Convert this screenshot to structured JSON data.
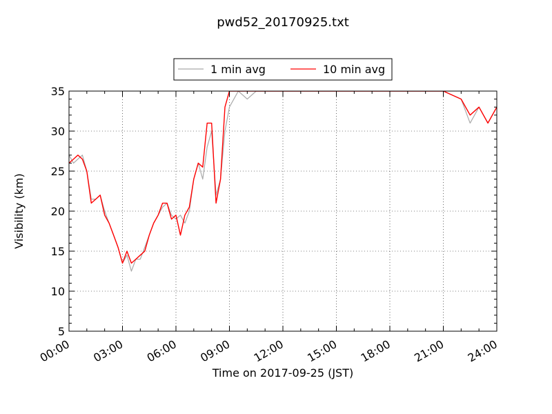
{
  "chart_data": {
    "type": "line",
    "title": "pwd52_20170925.txt",
    "xlabel": "Time on 2017-09-25 (JST)",
    "ylabel": "Visibility (km)",
    "xlim": [
      "00:00",
      "24:00"
    ],
    "ylim": [
      5,
      35
    ],
    "x_tick_labels": [
      "00:00",
      "03:00",
      "06:00",
      "09:00",
      "12:00",
      "15:00",
      "18:00",
      "21:00",
      "24:00"
    ],
    "y_tick_labels": [
      "5",
      "10",
      "15",
      "20",
      "25",
      "30",
      "35"
    ],
    "y_tick_values": [
      5,
      10,
      15,
      20,
      25,
      30,
      35
    ],
    "grid": true,
    "legend_position": "top-center",
    "x": [
      "00:00",
      "00:15",
      "00:30",
      "00:45",
      "01:00",
      "01:15",
      "01:30",
      "01:45",
      "02:00",
      "02:15",
      "02:30",
      "02:45",
      "03:00",
      "03:15",
      "03:30",
      "03:45",
      "04:00",
      "04:15",
      "04:30",
      "04:45",
      "05:00",
      "05:15",
      "05:30",
      "05:45",
      "06:00",
      "06:15",
      "06:30",
      "06:45",
      "07:00",
      "07:15",
      "07:30",
      "07:45",
      "08:00",
      "08:15",
      "08:30",
      "08:45",
      "09:00",
      "09:30",
      "10:00",
      "10:30",
      "11:00",
      "12:00",
      "13:00",
      "14:00",
      "15:00",
      "16:00",
      "17:00",
      "18:00",
      "19:00",
      "20:00",
      "21:00",
      "22:00",
      "22:30",
      "23:00",
      "23:30",
      "24:00"
    ],
    "series": [
      {
        "name": "1 min avg",
        "color": "#a9a9a9",
        "values": [
          27,
          26,
          26.5,
          27,
          25,
          21.5,
          21.5,
          22,
          20,
          18.5,
          17,
          15.5,
          13.5,
          14.5,
          12.5,
          14,
          14,
          15.5,
          17,
          18.5,
          19.5,
          20.5,
          21,
          19.5,
          19,
          19.5,
          18.5,
          20,
          24,
          26,
          24,
          28,
          30,
          22,
          24,
          30,
          33,
          35,
          34,
          35,
          35,
          35,
          35,
          35,
          35,
          35,
          35,
          35,
          35,
          35,
          35,
          34,
          31,
          33,
          31,
          33
        ]
      },
      {
        "name": "10 min avg",
        "color": "#ff0000",
        "values": [
          26,
          26.5,
          27,
          26.5,
          25,
          21,
          21.5,
          22,
          19.5,
          18.5,
          17,
          15.5,
          13.5,
          15,
          13.5,
          14,
          14.5,
          15,
          17,
          18.5,
          19.5,
          21,
          21,
          19,
          19.5,
          17,
          19.5,
          20.5,
          24,
          26,
          25.5,
          31,
          31,
          21,
          24,
          33,
          35,
          35,
          35,
          35,
          35,
          35,
          35,
          35,
          35,
          35,
          35,
          35,
          35,
          35,
          35,
          34,
          32,
          33,
          31,
          33
        ]
      }
    ]
  },
  "legend": {
    "items": [
      {
        "label": "1 min avg",
        "color": "#a9a9a9"
      },
      {
        "label": "10 min avg",
        "color": "#ff0000"
      }
    ]
  }
}
